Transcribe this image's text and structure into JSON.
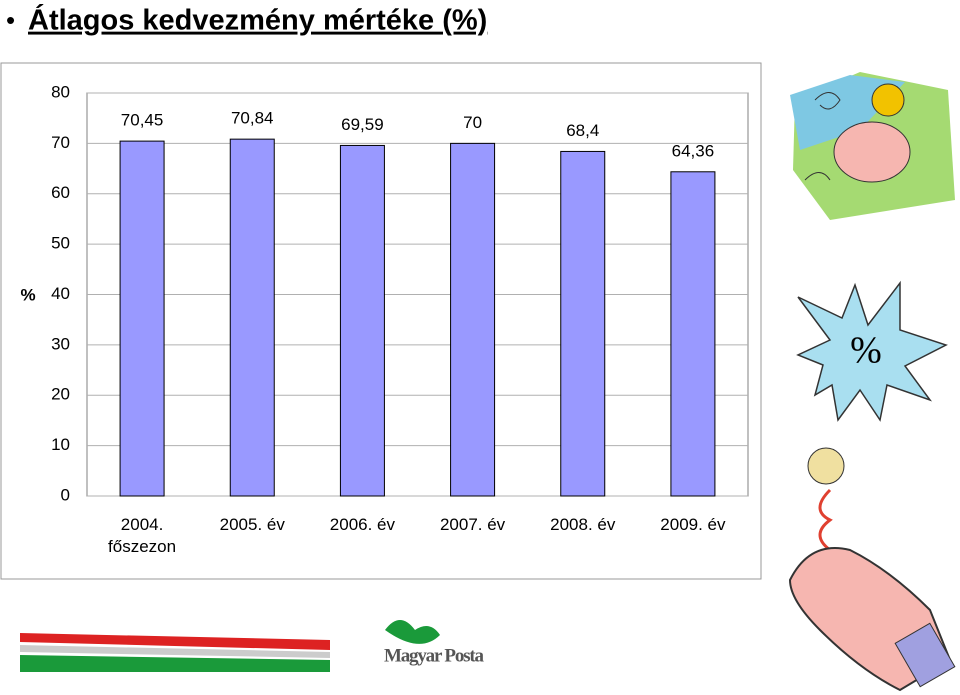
{
  "chart_data": {
    "type": "bar",
    "title": "Átlagos kedvezmény mértéke (%)",
    "y_label": "%",
    "categories": [
      "2004. főszezon",
      "2005. év",
      "2006. év",
      "2007. év",
      "2008. év",
      "2009. év"
    ],
    "values": [
      70.45,
      70.84,
      69.59,
      70,
      68.4,
      64.36
    ],
    "value_labels": [
      "70,45",
      "70,84",
      "69,59",
      "70",
      "68,4",
      "64,36"
    ],
    "color": "#9999ff",
    "ylim": [
      0,
      80
    ],
    "yticks": [
      0,
      10,
      20,
      30,
      40,
      50,
      60,
      70,
      80
    ],
    "grid": true
  },
  "star": {
    "text": "%"
  },
  "logo": {
    "text": "Magyar Posta"
  }
}
